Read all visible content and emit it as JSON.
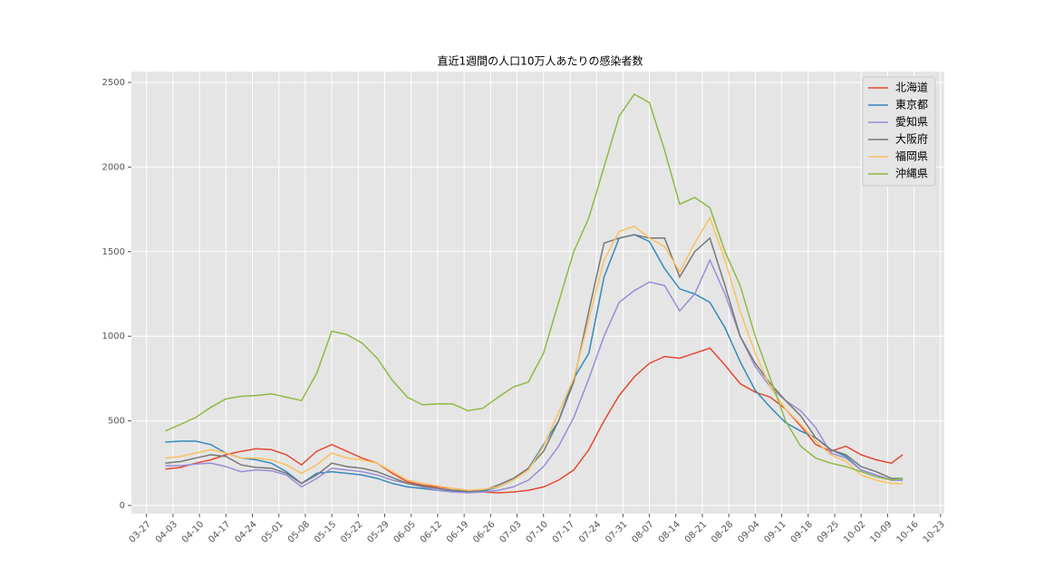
{
  "chart_data": {
    "type": "line",
    "title": "直近1週間の人口10万人あたりの感染者数",
    "x": [
      "04-01",
      "04-05",
      "04-09",
      "04-13",
      "04-17",
      "04-21",
      "04-25",
      "04-29",
      "05-03",
      "05-07",
      "05-11",
      "05-15",
      "05-19",
      "05-23",
      "05-27",
      "05-31",
      "06-04",
      "06-08",
      "06-12",
      "06-16",
      "06-20",
      "06-24",
      "06-28",
      "07-02",
      "07-06",
      "07-10",
      "07-14",
      "07-18",
      "07-22",
      "07-26",
      "07-30",
      "08-03",
      "08-07",
      "08-11",
      "08-15",
      "08-19",
      "08-23",
      "08-27",
      "08-31",
      "09-04",
      "09-08",
      "09-12",
      "09-16",
      "09-20",
      "09-24",
      "09-28",
      "10-02",
      "10-06",
      "10-10",
      "10-13"
    ],
    "series": [
      {
        "name": "北海道",
        "color": "#E24A33",
        "values": [
          215,
          225,
          250,
          270,
          300,
          320,
          335,
          330,
          300,
          240,
          320,
          360,
          320,
          280,
          250,
          190,
          140,
          120,
          110,
          100,
          90,
          80,
          75,
          80,
          90,
          110,
          150,
          210,
          330,
          500,
          650,
          760,
          840,
          880,
          870,
          900,
          930,
          830,
          720,
          670,
          640,
          570,
          470,
          360,
          320,
          350,
          300,
          270,
          250,
          300
        ]
      },
      {
        "name": "東京都",
        "color": "#348ABD",
        "values": [
          375,
          380,
          380,
          360,
          310,
          280,
          270,
          250,
          200,
          130,
          190,
          200,
          190,
          180,
          160,
          130,
          110,
          100,
          90,
          85,
          80,
          85,
          110,
          150,
          220,
          360,
          500,
          750,
          900,
          1350,
          1580,
          1600,
          1560,
          1400,
          1280,
          1250,
          1200,
          1050,
          850,
          680,
          580,
          490,
          440,
          400,
          330,
          290,
          210,
          180,
          150,
          150
        ]
      },
      {
        "name": "愛知県",
        "color": "#988ED5",
        "values": [
          235,
          235,
          245,
          250,
          230,
          200,
          210,
          205,
          180,
          110,
          160,
          220,
          210,
          200,
          180,
          150,
          130,
          110,
          90,
          80,
          75,
          80,
          90,
          110,
          150,
          230,
          350,
          520,
          750,
          1000,
          1200,
          1270,
          1320,
          1300,
          1150,
          1250,
          1450,
          1250,
          1000,
          820,
          700,
          620,
          560,
          460,
          310,
          280,
          210,
          180,
          150,
          150
        ]
      },
      {
        "name": "大阪府",
        "color": "#777777",
        "values": [
          250,
          260,
          280,
          300,
          290,
          240,
          225,
          220,
          190,
          130,
          180,
          250,
          230,
          220,
          200,
          165,
          130,
          115,
          100,
          90,
          85,
          90,
          120,
          160,
          220,
          320,
          500,
          730,
          1150,
          1550,
          1580,
          1600,
          1580,
          1580,
          1350,
          1500,
          1580,
          1300,
          1000,
          840,
          720,
          620,
          530,
          400,
          330,
          300,
          230,
          200,
          160,
          160
        ]
      },
      {
        "name": "福岡県",
        "color": "#FBC15E",
        "values": [
          280,
          290,
          310,
          330,
          310,
          280,
          280,
          270,
          240,
          190,
          240,
          310,
          280,
          270,
          250,
          200,
          150,
          130,
          115,
          100,
          90,
          95,
          110,
          150,
          210,
          350,
          550,
          750,
          1100,
          1450,
          1620,
          1650,
          1580,
          1530,
          1380,
          1550,
          1700,
          1450,
          1150,
          900,
          700,
          570,
          480,
          380,
          300,
          260,
          180,
          150,
          130,
          130
        ]
      },
      {
        "name": "沖縄県",
        "color": "#8EBA42",
        "values": [
          440,
          480,
          520,
          580,
          630,
          645,
          650,
          660,
          640,
          620,
          780,
          1030,
          1010,
          960,
          870,
          740,
          640,
          595,
          600,
          600,
          560,
          575,
          640,
          700,
          730,
          900,
          1200,
          1500,
          1700,
          2000,
          2300,
          2430,
          2380,
          2100,
          1780,
          1820,
          1760,
          1500,
          1300,
          1000,
          750,
          500,
          350,
          280,
          250,
          230,
          200,
          170,
          150,
          160
        ]
      }
    ],
    "xlim": [
      "03-23",
      "10-24"
    ],
    "xticks": [
      "03-27",
      "04-03",
      "04-10",
      "04-17",
      "04-24",
      "05-01",
      "05-08",
      "05-15",
      "05-22",
      "05-29",
      "06-05",
      "06-12",
      "06-19",
      "06-26",
      "07-03",
      "07-10",
      "07-17",
      "07-24",
      "07-31",
      "08-07",
      "08-14",
      "08-21",
      "08-28",
      "09-04",
      "09-11",
      "09-18",
      "09-25",
      "10-02",
      "10-09",
      "10-16",
      "10-23"
    ],
    "ylim": [
      -48,
      2564
    ],
    "yticks": [
      0,
      500,
      1000,
      1500,
      2000,
      2500
    ],
    "grid": true,
    "legend": "upper right"
  }
}
